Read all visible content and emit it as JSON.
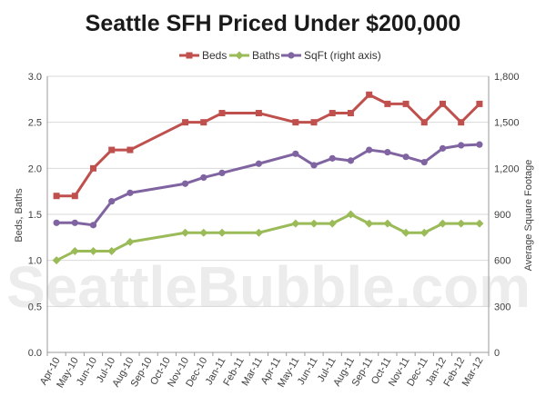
{
  "watermark": "SeattleBubble.com",
  "chart_data": {
    "type": "line",
    "title": "Seattle SFH Priced Under $200,000",
    "ylabel": "Beds, Baths",
    "y2label": "Average Square Footage",
    "ylim": [
      0,
      3.0
    ],
    "y2lim": [
      0,
      1800
    ],
    "yticks": [
      "0.0",
      "0.5",
      "1.0",
      "1.5",
      "2.0",
      "2.5",
      "3.0"
    ],
    "y2ticks": [
      "0",
      "300",
      "600",
      "900",
      "1,200",
      "1,500",
      "1,800"
    ],
    "grid": "horizontal",
    "legend_position": "top",
    "x": [
      "Apr-10",
      "May-10",
      "Jun-10",
      "Jul-10",
      "Aug-10",
      "Sep-10",
      "Oct-10",
      "Nov-10",
      "Dec-10",
      "Jan-11",
      "Feb-11",
      "Mar-11",
      "Apr-11",
      "May-11",
      "Jun-11",
      "Jul-11",
      "Aug-11",
      "Sep-11",
      "Oct-11",
      "Nov-11",
      "Dec-11",
      "Jan-12",
      "Feb-12",
      "Mar-12"
    ],
    "series": [
      {
        "name": "Beds",
        "axis": "left",
        "color": "#c0504d",
        "marker": "square",
        "values": [
          1.7,
          1.7,
          2.0,
          2.2,
          2.2,
          null,
          null,
          2.5,
          2.5,
          2.6,
          null,
          2.6,
          null,
          2.5,
          2.5,
          2.6,
          2.6,
          2.8,
          2.7,
          2.7,
          2.5,
          2.7,
          2.5,
          2.7
        ]
      },
      {
        "name": "Baths",
        "axis": "left",
        "color": "#9bbb59",
        "marker": "diamond",
        "values": [
          1.0,
          1.1,
          1.1,
          1.1,
          1.2,
          null,
          null,
          1.3,
          1.3,
          1.3,
          null,
          1.3,
          null,
          1.4,
          1.4,
          1.4,
          1.5,
          1.4,
          1.4,
          1.3,
          1.3,
          1.4,
          1.4,
          1.4
        ]
      },
      {
        "name": "SqFt (right axis)",
        "axis": "right",
        "color": "#8064a2",
        "marker": "circle",
        "values": [
          845,
          845,
          830,
          985,
          1040,
          null,
          null,
          1100,
          1140,
          1170,
          null,
          1230,
          null,
          1295,
          1220,
          1265,
          1250,
          1320,
          1305,
          1275,
          1240,
          1330,
          1350,
          1355
        ]
      }
    ]
  }
}
